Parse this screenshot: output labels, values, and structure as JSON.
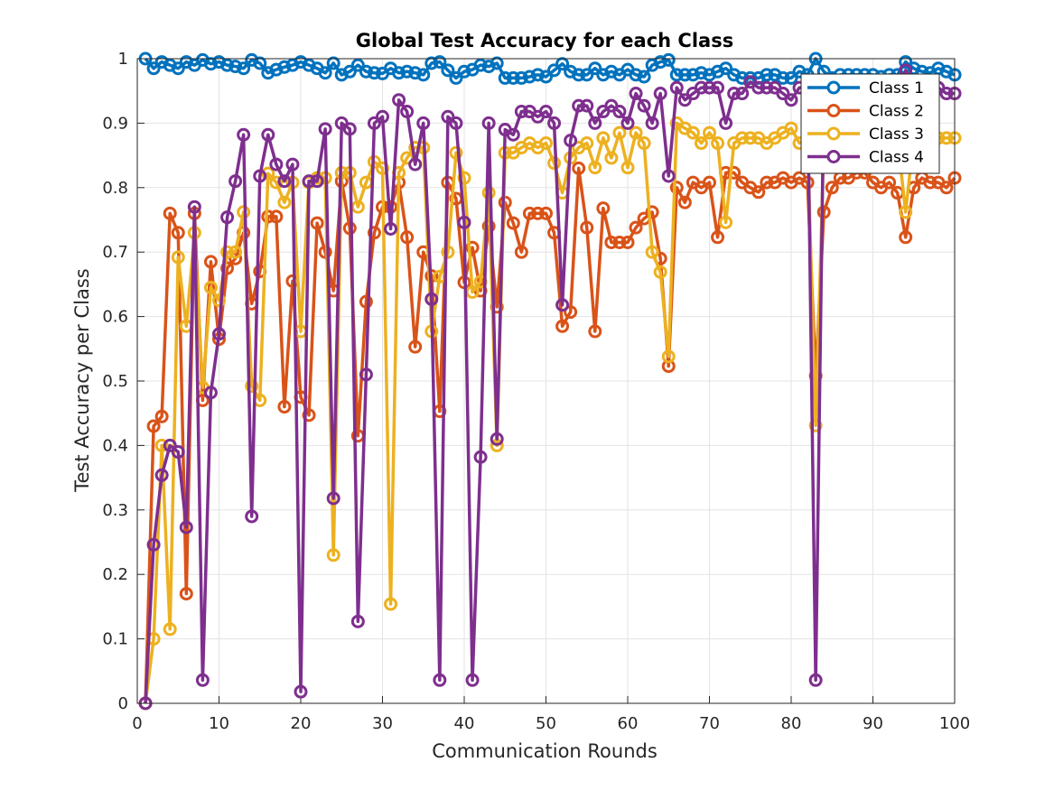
{
  "chart_data": {
    "type": "line",
    "title": "Global Test Accuracy for each Class",
    "xlabel": "Communication Rounds",
    "ylabel": "Test Accuracy per Class",
    "xlim": [
      0,
      100
    ],
    "ylim": [
      0,
      1
    ],
    "xticks": [
      0,
      10,
      20,
      30,
      40,
      50,
      60,
      70,
      80,
      90,
      100
    ],
    "yticks": [
      0,
      0.1,
      0.2,
      0.3,
      0.4,
      0.5,
      0.6,
      0.7,
      0.8,
      0.9,
      1
    ],
    "grid": true,
    "legend_position": "top-right",
    "marker": "open-circle",
    "x": [
      1,
      2,
      3,
      4,
      5,
      6,
      7,
      8,
      9,
      10,
      11,
      12,
      13,
      14,
      15,
      16,
      17,
      18,
      19,
      20,
      21,
      22,
      23,
      24,
      25,
      26,
      27,
      28,
      29,
      30,
      31,
      32,
      33,
      34,
      35,
      36,
      37,
      38,
      39,
      40,
      41,
      42,
      43,
      44,
      45,
      46,
      47,
      48,
      49,
      50,
      51,
      52,
      53,
      54,
      55,
      56,
      57,
      58,
      59,
      60,
      61,
      62,
      63,
      64,
      65,
      66,
      67,
      68,
      69,
      70,
      71,
      72,
      73,
      74,
      75,
      76,
      77,
      78,
      79,
      80,
      81,
      82,
      83,
      84,
      85,
      86,
      87,
      88,
      89,
      90,
      91,
      92,
      93,
      94,
      95,
      96,
      97,
      98,
      99,
      100
    ],
    "series": [
      {
        "name": "Class 1",
        "color": "#0072BD",
        "values": [
          1.0,
          0.985,
          0.995,
          0.99,
          0.985,
          0.995,
          0.99,
          0.998,
          0.992,
          0.995,
          0.99,
          0.988,
          0.985,
          0.998,
          0.993,
          0.978,
          0.983,
          0.987,
          0.99,
          0.995,
          0.99,
          0.985,
          0.978,
          0.993,
          0.975,
          0.98,
          0.99,
          0.98,
          0.978,
          0.977,
          0.985,
          0.978,
          0.98,
          0.978,
          0.975,
          0.993,
          0.995,
          0.982,
          0.97,
          0.98,
          0.983,
          0.99,
          0.988,
          0.993,
          0.97,
          0.97,
          0.97,
          0.972,
          0.975,
          0.972,
          0.982,
          0.992,
          0.98,
          0.975,
          0.975,
          0.985,
          0.975,
          0.98,
          0.975,
          0.983,
          0.975,
          0.972,
          0.99,
          0.995,
          0.998,
          0.975,
          0.975,
          0.975,
          0.978,
          0.975,
          0.98,
          0.985,
          0.975,
          0.97,
          0.97,
          0.97,
          0.975,
          0.975,
          0.97,
          0.97,
          0.98,
          0.975,
          1.0,
          0.98,
          0.97,
          0.975,
          0.975,
          0.975,
          0.975,
          0.975,
          0.972,
          0.975,
          0.975,
          0.995,
          0.985,
          0.98,
          0.978,
          0.985,
          0.98,
          0.975
        ]
      },
      {
        "name": "Class 2",
        "color": "#D95319",
        "values": [
          0.0,
          0.43,
          0.445,
          0.76,
          0.73,
          0.17,
          0.76,
          0.47,
          0.685,
          0.565,
          0.675,
          0.69,
          0.73,
          0.62,
          0.67,
          0.755,
          0.755,
          0.46,
          0.655,
          0.475,
          0.447,
          0.745,
          0.7,
          0.64,
          0.81,
          0.737,
          0.415,
          0.623,
          0.73,
          0.77,
          0.77,
          0.808,
          0.723,
          0.553,
          0.7,
          0.663,
          0.453,
          0.808,
          0.783,
          0.653,
          0.707,
          0.64,
          0.74,
          0.615,
          0.777,
          0.745,
          0.7,
          0.76,
          0.76,
          0.76,
          0.73,
          0.585,
          0.607,
          0.83,
          0.738,
          0.577,
          0.768,
          0.715,
          0.715,
          0.715,
          0.738,
          0.752,
          0.762,
          0.69,
          0.523,
          0.8,
          0.777,
          0.808,
          0.8,
          0.808,
          0.723,
          0.823,
          0.823,
          0.808,
          0.8,
          0.793,
          0.808,
          0.808,
          0.815,
          0.808,
          0.815,
          0.808,
          0.508,
          0.762,
          0.8,
          0.815,
          0.815,
          0.823,
          0.823,
          0.808,
          0.8,
          0.808,
          0.792,
          0.723,
          0.8,
          0.815,
          0.808,
          0.808,
          0.8,
          0.815
        ]
      },
      {
        "name": "Class 3",
        "color": "#EDB120",
        "values": [
          0.0,
          0.1,
          0.4,
          0.115,
          0.692,
          0.585,
          0.73,
          0.49,
          0.645,
          0.625,
          0.7,
          0.7,
          0.762,
          0.492,
          0.47,
          0.822,
          0.808,
          0.777,
          0.808,
          0.577,
          0.808,
          0.815,
          0.815,
          0.23,
          0.823,
          0.823,
          0.77,
          0.808,
          0.84,
          0.83,
          0.154,
          0.823,
          0.846,
          0.862,
          0.862,
          0.577,
          0.662,
          0.7,
          0.854,
          0.815,
          0.638,
          0.654,
          0.792,
          0.4,
          0.854,
          0.854,
          0.862,
          0.869,
          0.862,
          0.869,
          0.838,
          0.792,
          0.846,
          0.862,
          0.869,
          0.831,
          0.877,
          0.846,
          0.885,
          0.831,
          0.885,
          0.869,
          0.7,
          0.669,
          0.538,
          0.9,
          0.892,
          0.885,
          0.869,
          0.885,
          0.869,
          0.746,
          0.869,
          0.877,
          0.877,
          0.877,
          0.869,
          0.877,
          0.885,
          0.892,
          0.869,
          0.877,
          0.431,
          0.869,
          0.877,
          0.877,
          0.877,
          0.877,
          0.877,
          0.877,
          0.877,
          0.877,
          0.877,
          0.762,
          0.877,
          0.877,
          0.877,
          0.877,
          0.877,
          0.877
        ]
      },
      {
        "name": "Class 4",
        "color": "#7E2F8E",
        "values": [
          0.0,
          0.246,
          0.354,
          0.4,
          0.39,
          0.273,
          0.77,
          0.036,
          0.482,
          0.573,
          0.754,
          0.81,
          0.882,
          0.29,
          0.818,
          0.882,
          0.836,
          0.81,
          0.836,
          0.018,
          0.81,
          0.81,
          0.891,
          0.318,
          0.9,
          0.891,
          0.127,
          0.51,
          0.9,
          0.91,
          0.736,
          0.936,
          0.918,
          0.836,
          0.9,
          0.627,
          0.036,
          0.91,
          0.9,
          0.746,
          0.036,
          0.382,
          0.9,
          0.41,
          0.89,
          0.882,
          0.918,
          0.918,
          0.91,
          0.918,
          0.9,
          0.618,
          0.873,
          0.927,
          0.927,
          0.9,
          0.918,
          0.927,
          0.918,
          0.9,
          0.946,
          0.927,
          0.9,
          0.946,
          0.818,
          0.955,
          0.936,
          0.946,
          0.955,
          0.955,
          0.955,
          0.9,
          0.946,
          0.946,
          0.964,
          0.955,
          0.955,
          0.955,
          0.946,
          0.936,
          0.955,
          0.955,
          0.036,
          0.955,
          0.955,
          0.955,
          0.955,
          0.955,
          0.955,
          0.955,
          0.955,
          0.955,
          0.955,
          0.982,
          0.955,
          0.955,
          0.946,
          0.955,
          0.946,
          0.946
        ]
      }
    ]
  }
}
